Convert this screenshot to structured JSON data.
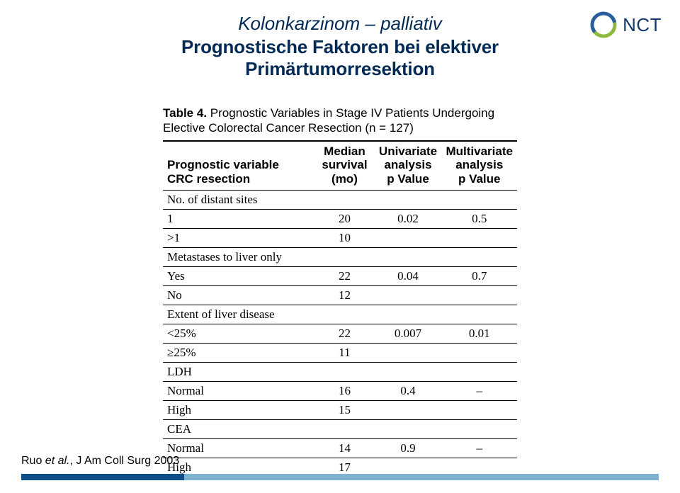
{
  "header": {
    "line1": "Kolonkarzinom – palliativ",
    "line2": "Prognostische Faktoren bei elektiver Primärtumorresektion",
    "title_color": "#022a55",
    "line1_fontsize": 26,
    "line2_fontsize": 26
  },
  "logo": {
    "text": "NCT",
    "text_color": "#14396e",
    "ring_outer_color": "#8fb93c",
    "ring_inner_color": "#2a5f9e"
  },
  "table": {
    "caption_label": "Table 4.",
    "caption_text": "Prognostic Variables in Stage IV Patients Undergoing Elective Colorectal Cancer Resection (n = 127)",
    "headers": {
      "c0a": "Prognostic variable",
      "c0b": "CRC resection",
      "c1a": "Median",
      "c1b": "survival",
      "c1c": "(mo)",
      "c2a": "Univariate",
      "c2b": "analysis",
      "c2c": "p Value",
      "c3a": "Multivariate",
      "c3b": "analysis",
      "c3c": "p Value"
    },
    "header_font": "Arial",
    "body_font": "Georgia",
    "rule_color": "#000000",
    "rows": [
      {
        "kind": "section",
        "label": "No. of distant sites"
      },
      {
        "kind": "sub",
        "label": "1",
        "ms": "20",
        "uni": "0.02",
        "multi": "0.5"
      },
      {
        "kind": "sub",
        "label": ">1",
        "ms": "10",
        "uni": "",
        "multi": ""
      },
      {
        "kind": "section",
        "label": "Metastases to liver only"
      },
      {
        "kind": "sub",
        "label": "Yes",
        "ms": "22",
        "uni": "0.04",
        "multi": "0.7"
      },
      {
        "kind": "sub",
        "label": "No",
        "ms": "12",
        "uni": "",
        "multi": ""
      },
      {
        "kind": "section",
        "label": "Extent of liver disease"
      },
      {
        "kind": "sub",
        "label": "<25%",
        "ms": "22",
        "uni": "0.007",
        "multi": "0.01"
      },
      {
        "kind": "sub",
        "label": "≥25%",
        "ms": "11",
        "uni": "",
        "multi": ""
      },
      {
        "kind": "section",
        "label": "LDH"
      },
      {
        "kind": "sub",
        "label": "Normal",
        "ms": "16",
        "uni": "0.4",
        "multi": "–"
      },
      {
        "kind": "sub",
        "label": "High",
        "ms": "15",
        "uni": "",
        "multi": ""
      },
      {
        "kind": "section",
        "label": "CEA"
      },
      {
        "kind": "sub",
        "label": "Normal",
        "ms": "14",
        "uni": "0.9",
        "multi": "–"
      },
      {
        "kind": "sub",
        "label": "High",
        "ms": "17",
        "uni": "",
        "multi": ""
      }
    ]
  },
  "citation": {
    "author": "Ruo ",
    "etal": "et al.",
    "rest": ", J Am Coll Surg 2003"
  },
  "footer": {
    "bar_color": "#7eb3d1",
    "accent_color": "#0e4d86"
  }
}
